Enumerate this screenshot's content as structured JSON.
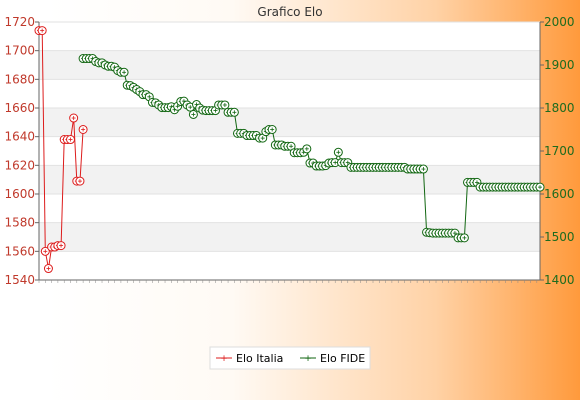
{
  "chart_data": {
    "type": "line",
    "title": "Grafico Elo",
    "left_axis": {
      "range": [
        1540,
        1720
      ],
      "ticks": [
        1540,
        1560,
        1580,
        1600,
        1620,
        1640,
        1660,
        1680,
        1700,
        1720
      ],
      "color": "#d91a1a"
    },
    "right_axis": {
      "range": [
        1400,
        2000
      ],
      "ticks": [
        1400,
        1500,
        1600,
        1700,
        1800,
        1900,
        2000
      ],
      "color": "#0d6b0d"
    },
    "grid": true,
    "legend_position": "bottom-center",
    "x_count": 160,
    "series": [
      {
        "name": "Elo Italia",
        "axis": "left",
        "color": "#dd1c1c",
        "points": [
          [
            0,
            1714
          ],
          [
            1,
            1714
          ],
          [
            2,
            1560
          ],
          [
            3,
            1548
          ],
          [
            4,
            1563
          ],
          [
            5,
            1563
          ],
          [
            6,
            1564
          ],
          [
            7,
            1564
          ],
          [
            8,
            1638
          ],
          [
            9,
            1638
          ],
          [
            10,
            1638
          ],
          [
            11,
            1653
          ],
          [
            12,
            1609
          ],
          [
            13,
            1609
          ],
          [
            14,
            1645
          ]
        ]
      },
      {
        "name": "Elo FIDE",
        "axis": "right",
        "color": "#116611",
        "points": [
          [
            14,
            1915
          ],
          [
            15,
            1915
          ],
          [
            16,
            1915
          ],
          [
            17,
            1915
          ],
          [
            18,
            1908
          ],
          [
            19,
            1905
          ],
          [
            20,
            1905
          ],
          [
            21,
            1900
          ],
          [
            22,
            1897
          ],
          [
            23,
            1897
          ],
          [
            24,
            1895
          ],
          [
            25,
            1887
          ],
          [
            26,
            1883
          ],
          [
            27,
            1883
          ],
          [
            28,
            1853
          ],
          [
            29,
            1852
          ],
          [
            30,
            1848
          ],
          [
            31,
            1843
          ],
          [
            32,
            1838
          ],
          [
            33,
            1831
          ],
          [
            34,
            1831
          ],
          [
            35,
            1826
          ],
          [
            36,
            1813
          ],
          [
            37,
            1812
          ],
          [
            38,
            1807
          ],
          [
            39,
            1801
          ],
          [
            40,
            1801
          ],
          [
            41,
            1801
          ],
          [
            42,
            1803
          ],
          [
            43,
            1796
          ],
          [
            44,
            1804
          ],
          [
            45,
            1815
          ],
          [
            46,
            1816
          ],
          [
            47,
            1807
          ],
          [
            48,
            1802
          ],
          [
            49,
            1785
          ],
          [
            50,
            1808
          ],
          [
            51,
            1800
          ],
          [
            52,
            1795
          ],
          [
            53,
            1794
          ],
          [
            54,
            1794
          ],
          [
            55,
            1794
          ],
          [
            56,
            1794
          ],
          [
            57,
            1807
          ],
          [
            58,
            1807
          ],
          [
            59,
            1807
          ],
          [
            60,
            1790
          ],
          [
            61,
            1790
          ],
          [
            62,
            1790
          ],
          [
            63,
            1741
          ],
          [
            64,
            1741
          ],
          [
            65,
            1741
          ],
          [
            66,
            1736
          ],
          [
            67,
            1736
          ],
          [
            68,
            1736
          ],
          [
            69,
            1736
          ],
          [
            70,
            1730
          ],
          [
            71,
            1730
          ],
          [
            72,
            1745
          ],
          [
            73,
            1750
          ],
          [
            74,
            1750
          ],
          [
            75,
            1714
          ],
          [
            76,
            1714
          ],
          [
            77,
            1714
          ],
          [
            78,
            1711
          ],
          [
            79,
            1711
          ],
          [
            80,
            1711
          ],
          [
            81,
            1696
          ],
          [
            82,
            1696
          ],
          [
            83,
            1696
          ],
          [
            84,
            1697
          ],
          [
            85,
            1705
          ],
          [
            86,
            1672
          ],
          [
            87,
            1672
          ],
          [
            88,
            1665
          ],
          [
            89,
            1665
          ],
          [
            90,
            1665
          ],
          [
            91,
            1666
          ],
          [
            92,
            1672
          ],
          [
            93,
            1673
          ],
          [
            94,
            1673
          ],
          [
            95,
            1697
          ],
          [
            96,
            1673
          ],
          [
            97,
            1673
          ],
          [
            98,
            1673
          ],
          [
            99,
            1662
          ],
          [
            100,
            1662
          ],
          [
            101,
            1662
          ],
          [
            102,
            1662
          ],
          [
            103,
            1662
          ],
          [
            104,
            1662
          ],
          [
            105,
            1662
          ],
          [
            106,
            1662
          ],
          [
            107,
            1662
          ],
          [
            108,
            1662
          ],
          [
            109,
            1662
          ],
          [
            110,
            1662
          ],
          [
            111,
            1662
          ],
          [
            112,
            1662
          ],
          [
            113,
            1662
          ],
          [
            114,
            1662
          ],
          [
            115,
            1662
          ],
          [
            116,
            1662
          ],
          [
            117,
            1658
          ],
          [
            118,
            1658
          ],
          [
            119,
            1658
          ],
          [
            120,
            1658
          ],
          [
            121,
            1658
          ],
          [
            122,
            1658
          ],
          [
            123,
            1511
          ],
          [
            124,
            1510
          ],
          [
            125,
            1509
          ],
          [
            126,
            1509
          ],
          [
            127,
            1509
          ],
          [
            128,
            1509
          ],
          [
            129,
            1509
          ],
          [
            130,
            1509
          ],
          [
            131,
            1509
          ],
          [
            132,
            1509
          ],
          [
            133,
            1498
          ],
          [
            134,
            1498
          ],
          [
            135,
            1498
          ],
          [
            136,
            1627
          ],
          [
            137,
            1627
          ],
          [
            138,
            1627
          ],
          [
            139,
            1627
          ],
          [
            140,
            1616
          ],
          [
            141,
            1616
          ],
          [
            142,
            1616
          ],
          [
            143,
            1616
          ],
          [
            144,
            1616
          ],
          [
            145,
            1616
          ],
          [
            146,
            1616
          ],
          [
            147,
            1616
          ],
          [
            148,
            1616
          ],
          [
            149,
            1616
          ],
          [
            150,
            1616
          ],
          [
            151,
            1616
          ],
          [
            152,
            1616
          ],
          [
            153,
            1616
          ],
          [
            154,
            1616
          ],
          [
            155,
            1616
          ],
          [
            156,
            1616
          ],
          [
            157,
            1616
          ],
          [
            158,
            1616
          ],
          [
            159,
            1616
          ]
        ]
      }
    ]
  }
}
